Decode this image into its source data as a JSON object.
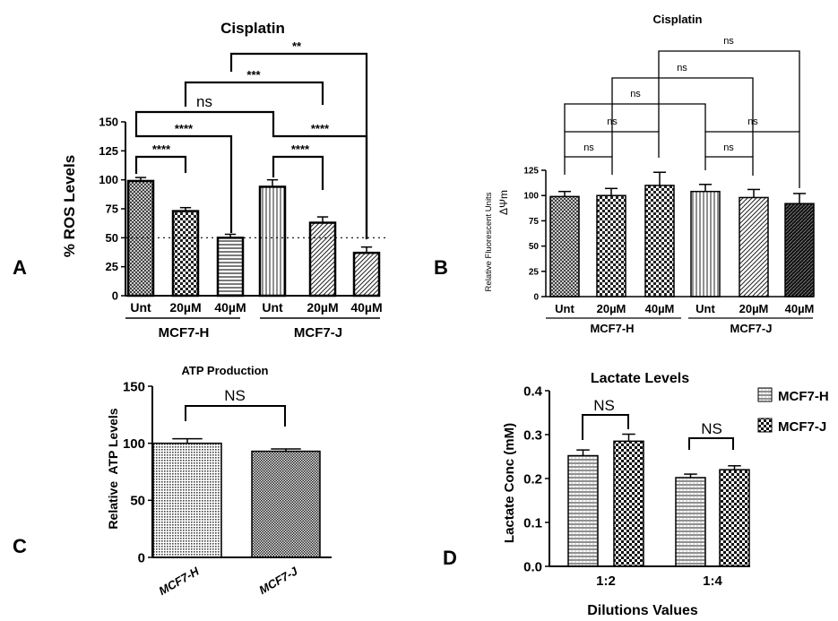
{
  "figure": {
    "panel_letters": [
      "A",
      "B",
      "C",
      "D"
    ]
  },
  "chart_data": [
    {
      "panel": "A",
      "type": "bar",
      "title": "Cisplatin",
      "ylabel": "% ROS Levels",
      "xlabel": "",
      "ylim": [
        0,
        150
      ],
      "yticks": [
        "0",
        "25",
        "50",
        "75",
        "100",
        "125",
        "150"
      ],
      "categories": [
        "Unt",
        "20µM",
        "40µM",
        "Unt",
        "20µM",
        "40µM"
      ],
      "groups": [
        "MCF7-H",
        "MCF7-J"
      ],
      "values": [
        99,
        73,
        50,
        94,
        63,
        37
      ],
      "errors": [
        3,
        3,
        3,
        6,
        5,
        5
      ],
      "patterns": [
        "crosshatch",
        "checker",
        "hlines",
        "vlines",
        "diag",
        "diag"
      ],
      "reference_line": 50,
      "annotations": [
        "ns",
        "****",
        "****",
        "****",
        "****",
        "***",
        "**"
      ]
    },
    {
      "panel": "B",
      "type": "bar",
      "title": "Cisplatin",
      "ylabel": "Relative Fluorescent Units",
      "ylabel2": "ΔΨm",
      "xlabel": "",
      "ylim": [
        0,
        125
      ],
      "yticks": [
        "0",
        "25",
        "50",
        "75",
        "100",
        "125"
      ],
      "categories": [
        "Unt",
        "20µM",
        "40µM",
        "Unt",
        "20µM",
        "40µM"
      ],
      "groups": [
        "MCF7-H",
        "MCF7-J"
      ],
      "values": [
        99,
        100,
        110,
        104,
        98,
        92
      ],
      "errors": [
        5,
        7,
        13,
        7,
        8,
        10
      ],
      "patterns": [
        "crosshatch",
        "checker",
        "checker",
        "vlines",
        "diag",
        "darkdiag"
      ],
      "annotations": [
        "ns",
        "ns",
        "ns",
        "ns",
        "ns",
        "ns",
        "ns"
      ]
    },
    {
      "panel": "C",
      "type": "bar",
      "title": "ATP Production",
      "ylabel": "Relative  ATP Levels",
      "xlabel": "",
      "ylim": [
        0,
        150
      ],
      "yticks": [
        "0",
        "50",
        "100",
        "150"
      ],
      "categories": [
        "MCF7-H",
        "MCF7-J"
      ],
      "values": [
        100,
        93
      ],
      "errors": [
        4,
        2
      ],
      "annotations": [
        "NS"
      ]
    },
    {
      "panel": "D",
      "type": "bar",
      "title": "Lactate Levels",
      "ylabel": "Lactate Conc (mM)",
      "xlabel": "Dilutions Values",
      "ylim": [
        0,
        0.4
      ],
      "yticks": [
        "0.0",
        "0.1",
        "0.2",
        "0.3",
        "0.4"
      ],
      "categories": [
        "1:2",
        "1:4"
      ],
      "series": [
        {
          "name": "MCF7-H",
          "values": [
            0.252,
            0.202
          ],
          "errors": [
            0.013,
            0.008
          ]
        },
        {
          "name": "MCF7-J",
          "values": [
            0.285,
            0.22
          ],
          "errors": [
            0.016,
            0.009
          ]
        }
      ],
      "annotations": [
        "NS",
        "NS"
      ],
      "legend": "top-right"
    }
  ]
}
